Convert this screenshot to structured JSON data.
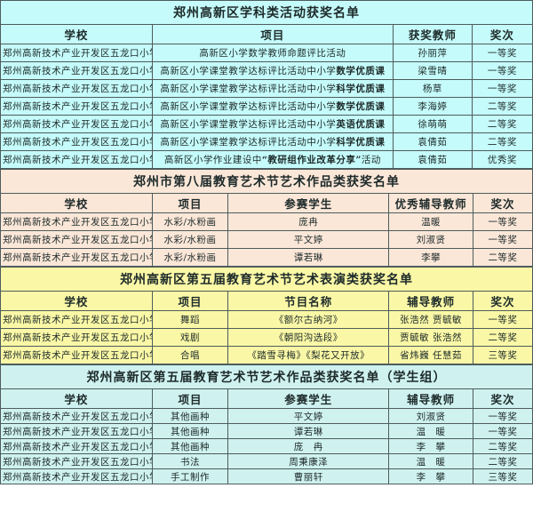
{
  "document": {
    "type": "award-list-tables",
    "border_color": "#4e5c5c",
    "school_name": "郑州高新技术产业开发区五龙口小学"
  },
  "sections": [
    {
      "title": "郑州高新区学科类活动获奖名单",
      "bg": "#c5fbfa",
      "columns": [
        "学校",
        "项目",
        "获奖教师",
        "奖次"
      ],
      "col_widths": [
        "28.5%",
        "45.3%",
        "14.8%",
        "11.4%"
      ],
      "rows": [
        [
          "郑州高新技术产业开发区五龙口小学",
          "高新区小学数学教师命题评比活动",
          "孙丽萍",
          "一等奖"
        ],
        [
          "郑州高新技术产业开发区五龙口小学",
          [
            {
              "t": "高新区小学课堂教学达标评比活动中小学"
            },
            {
              "t": "数学优质课",
              "b": true
            }
          ],
          "梁雪晴",
          "一等奖"
        ],
        [
          "郑州高新技术产业开发区五龙口小学",
          [
            {
              "t": "高新区小学课堂教学达标评比活动中小学"
            },
            {
              "t": "科学优质课",
              "b": true
            }
          ],
          "杨草",
          "一等奖"
        ],
        [
          "郑州高新技术产业开发区五龙口小学",
          [
            {
              "t": "高新区小学课堂教学达标评比活动中小学"
            },
            {
              "t": "数学优质课",
              "b": true
            }
          ],
          "李海婷",
          "二等奖"
        ],
        [
          "郑州高新技术产业开发区五龙口小学",
          [
            {
              "t": "高新区小学课堂教学达标评比活动中小学"
            },
            {
              "t": "英语优质课",
              "b": true
            }
          ],
          "徐萌萌",
          "二等奖"
        ],
        [
          "郑州高新技术产业开发区五龙口小学",
          [
            {
              "t": "高新区小学课堂教学达标评比活动中小学"
            },
            {
              "t": "科学优质课",
              "b": true
            }
          ],
          "袁倩茹",
          "二等奖"
        ],
        [
          "郑州高新技术产业开发区五龙口小学",
          [
            {
              "t": "高新区小学作业建设中"
            },
            {
              "t": "“教研组作业改革分享”",
              "b": true
            },
            {
              "t": "活动"
            }
          ],
          "袁倩茹",
          "优秀奖"
        ]
      ]
    },
    {
      "title": "郑州市第八届教育艺术节艺术作品类获奖名单",
      "bg": "#fbe7d8",
      "columns": [
        "学校",
        "项目",
        "参赛学生",
        "优秀辅导教师",
        "奖次"
      ],
      "col_widths": [
        "28.5%",
        "14.3%",
        "30.2%",
        "15.8%",
        "11.2%"
      ],
      "rows": [
        [
          "郑州高新技术产业开发区五龙口小学",
          "水彩/水粉画",
          "庞冉",
          "温暖",
          "一等奖"
        ],
        [
          "郑州高新技术产业开发区五龙口小学",
          "水彩/水粉画",
          "平文婷",
          "刘淑贤",
          "一等奖"
        ],
        [
          "郑州高新技术产业开发区五龙口小学",
          "水彩/水粉画",
          "谭若琳",
          "李攀",
          "二等奖"
        ]
      ]
    },
    {
      "title": "郑州高新区第五届教育艺术节艺术表演类获奖名单",
      "bg": "#faf8a6",
      "columns": [
        "学校",
        "项目",
        "节目名称",
        "辅导教师",
        "奖次"
      ],
      "col_widths": [
        "28.5%",
        "14.3%",
        "30.2%",
        "15.8%",
        "11.2%"
      ],
      "rows": [
        [
          "郑州高新技术产业开发区五龙口小学",
          "舞蹈",
          "《额尔古纳河》",
          "张浩然 贾毓敏",
          "一等奖"
        ],
        [
          "郑州高新技术产业开发区五龙口小学",
          "戏剧",
          "《朝阳沟选段》",
          "贾毓敏 张浩然",
          "二等奖"
        ],
        [
          "郑州高新技术产业开发区五龙口小学",
          "合唱",
          "《踏雪寻梅》《梨花又开放》",
          "省炜巍 任慧茹",
          "三等奖"
        ]
      ]
    },
    {
      "title": "郑州高新区第五届教育艺术节艺术作品类获奖名单（学生组）",
      "bg": "#cff2f0",
      "columns": [
        "学校",
        "项目",
        "参赛学生",
        "辅导教师",
        "奖次"
      ],
      "col_widths": [
        "28.5%",
        "14.3%",
        "30.2%",
        "15.8%",
        "11.2%"
      ],
      "rows": [
        [
          "郑州高新技术产业开发区五龙口小学",
          "其他画种",
          "平文婷",
          "刘淑贤",
          "一等奖"
        ],
        [
          "郑州高新技术产业开发区五龙口小学",
          "其他画种",
          "谭若琳",
          "温　暖",
          "一等奖"
        ],
        [
          "郑州高新技术产业开发区五龙口小学",
          "其他画种",
          "庞　冉",
          "李　攀",
          "二等奖"
        ],
        [
          "郑州高新技术产业开发区五龙口小学",
          "书法",
          "周秉康泽",
          "温　暖",
          "二等奖"
        ],
        [
          "郑州高新技术产业开发区五龙口小学",
          "手工制作",
          "曹丽轩",
          "李　攀",
          "三等奖"
        ]
      ]
    }
  ]
}
